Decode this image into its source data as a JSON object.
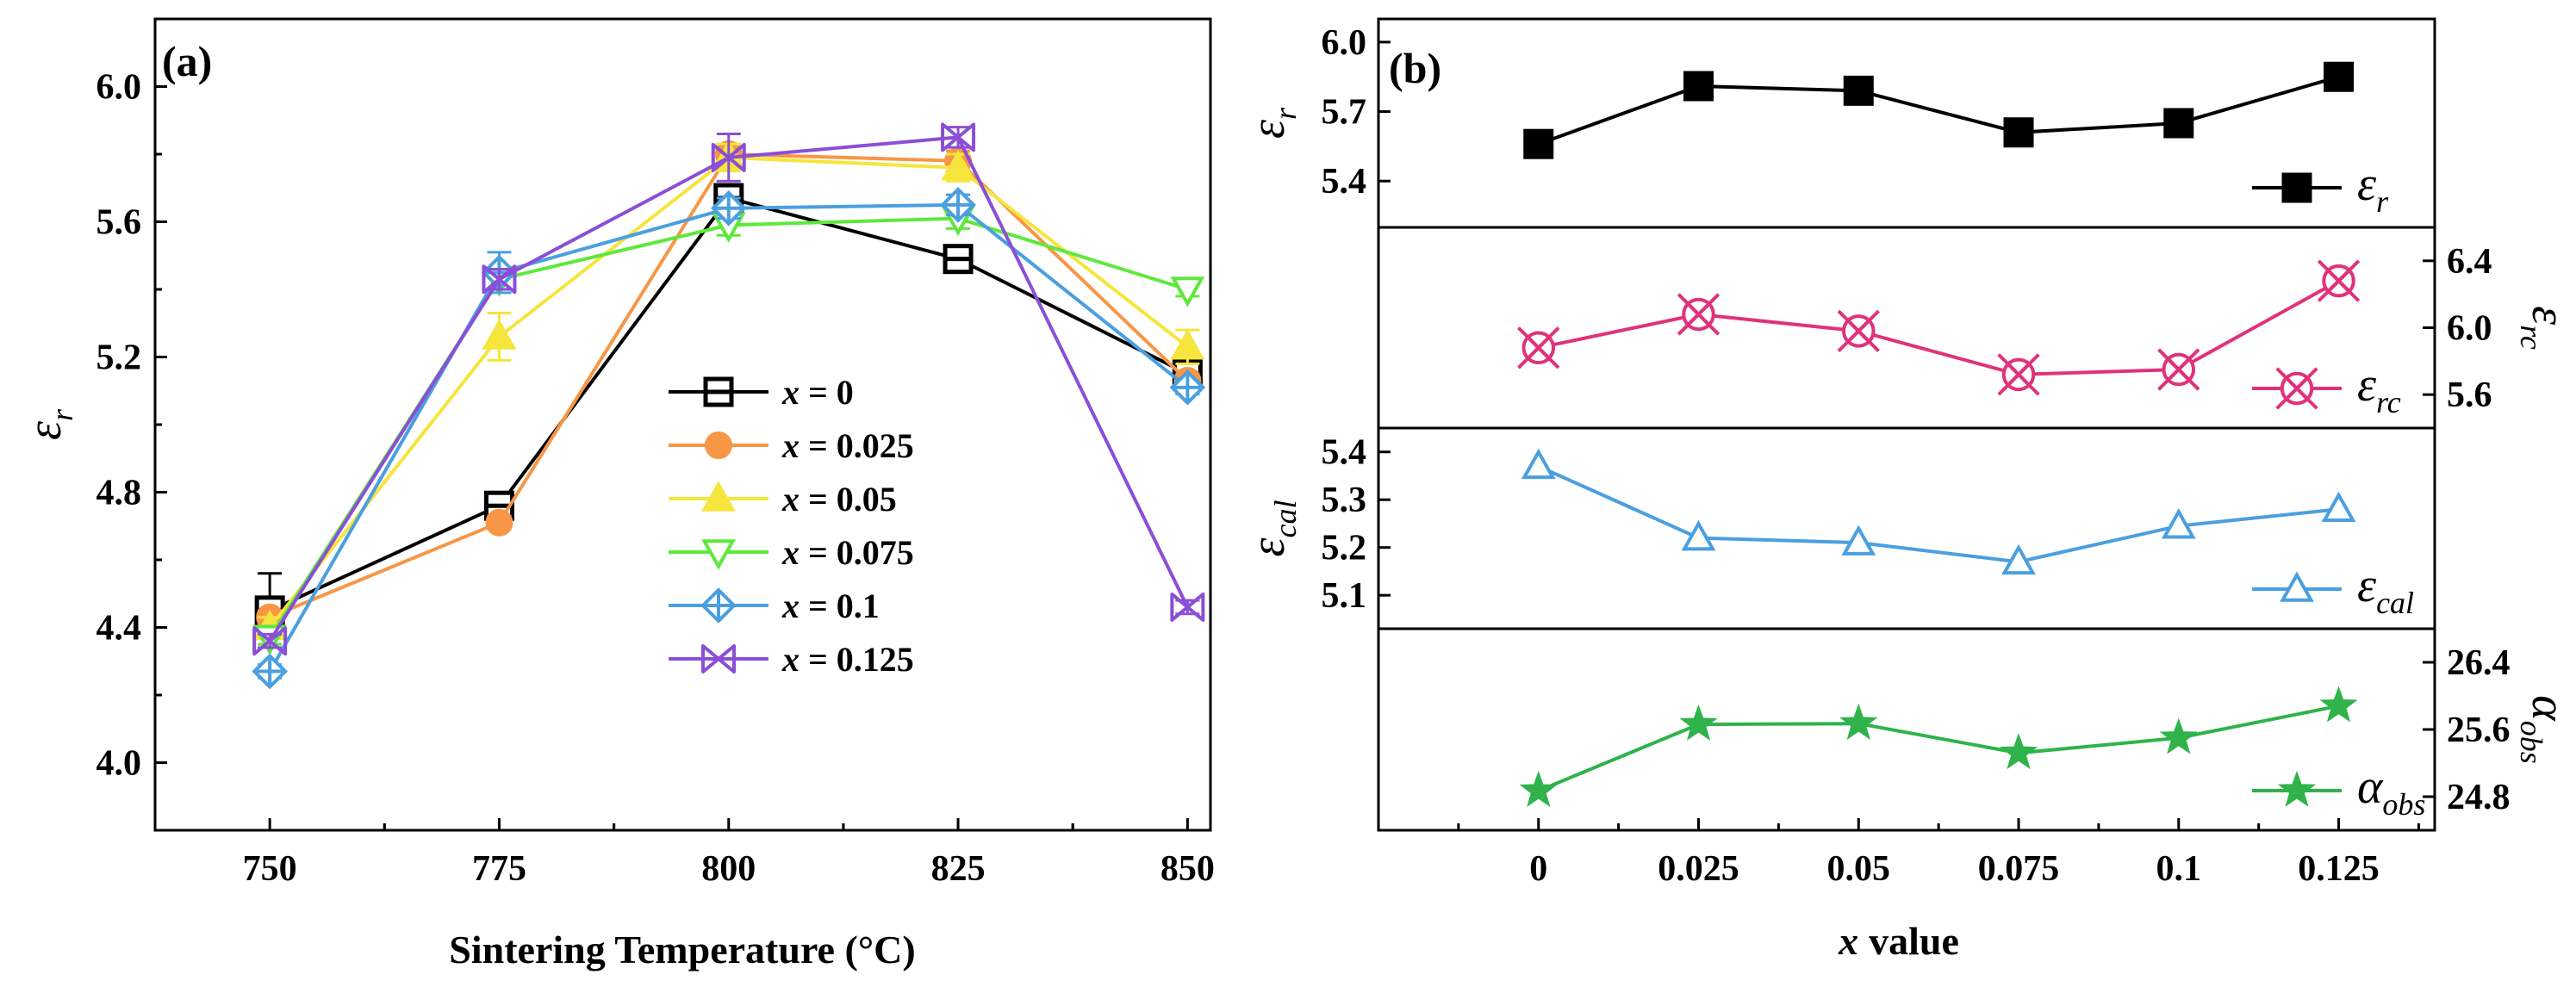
{
  "chart_data": [
    {
      "type": "line",
      "panel_label": "(a)",
      "xlabel": "Sintering Temperature (°C)",
      "ylabel": {
        "symbol": "ε",
        "sub": "r"
      },
      "x": [
        750,
        775,
        800,
        825,
        850
      ],
      "xlim": [
        737.5,
        852.5
      ],
      "ylim": [
        3.8,
        6.2
      ],
      "xticks": [
        "750",
        "775",
        "800",
        "825",
        "850"
      ],
      "yticks": [
        "4.0",
        "4.4",
        "4.8",
        "5.2",
        "5.6",
        "6.0"
      ],
      "series": [
        {
          "name": "x = 0",
          "prefix": "x",
          "value": "= 0",
          "color": "#000000",
          "marker": "square-open",
          "values": [
            4.45,
            4.76,
            5.67,
            5.49,
            5.15
          ],
          "errors": [
            0.11,
            0.02,
            0.04,
            0.02,
            0.02
          ]
        },
        {
          "name": "x = 0.025",
          "prefix": "x",
          "value": "= 0.025",
          "color": "#f79646",
          "marker": "circle-filled",
          "values": [
            4.43,
            4.71,
            5.8,
            5.78,
            5.13
          ],
          "errors": [
            0.02,
            0.02,
            0.03,
            0.03,
            0.02
          ]
        },
        {
          "name": "x = 0.05",
          "prefix": "x",
          "value": "= 0.05",
          "color": "#f5e53c",
          "marker": "triangle-filled",
          "values": [
            4.4,
            5.26,
            5.79,
            5.76,
            5.23
          ],
          "errors": [
            0.03,
            0.07,
            0.04,
            0.04,
            0.05
          ]
        },
        {
          "name": "x = 0.075",
          "prefix": "x",
          "value": "= 0.075",
          "color": "#5ee83c",
          "marker": "triangle-down-open",
          "values": [
            4.37,
            5.43,
            5.59,
            5.61,
            5.4
          ],
          "errors": [
            0.02,
            0.03,
            0.03,
            0.03,
            0.02
          ]
        },
        {
          "name": "x = 0.1",
          "prefix": "x",
          "value": "= 0.1",
          "color": "#4a9fe0",
          "marker": "diamond-cross",
          "values": [
            4.27,
            5.45,
            5.64,
            5.65,
            5.11
          ],
          "errors": [
            0.02,
            0.06,
            0.03,
            0.03,
            0.02
          ]
        },
        {
          "name": "x = 0.125",
          "prefix": "x",
          "value": "= 0.125",
          "color": "#8a4fd6",
          "marker": "x-bowtie",
          "values": [
            4.36,
            5.43,
            5.79,
            5.85,
            4.46
          ],
          "errors": [
            0.02,
            0.03,
            0.07,
            0.03,
            0.02
          ]
        }
      ]
    },
    {
      "type": "line",
      "panel_label": "(b)",
      "xlabel": {
        "prefix": "x",
        "rest": "value"
      },
      "categories": [
        "0",
        "0.025",
        "0.05",
        "0.075",
        "0.1",
        "0.125"
      ],
      "x": [
        0,
        0.025,
        0.05,
        0.075,
        0.1,
        0.125
      ],
      "xlim": [
        -0.025,
        0.14
      ],
      "subplots": [
        {
          "name": "εr",
          "symbol": "ε",
          "sub": "r",
          "axis_side": "left",
          "color": "#000000",
          "marker": "square-filled",
          "ylim": [
            5.2,
            6.1
          ],
          "yticks": [
            "5.4",
            "5.7",
            "6.0"
          ],
          "values": [
            5.56,
            5.81,
            5.79,
            5.61,
            5.65,
            5.85
          ],
          "errors": [
            0.01,
            0.01,
            0.01,
            0.02,
            0.01,
            0.02
          ]
        },
        {
          "name": "εrc",
          "symbol": "ε",
          "sub": "rc",
          "axis_side": "right",
          "color": "#e0327a",
          "marker": "x-circle",
          "ylim": [
            5.4,
            6.6
          ],
          "yticks": [
            "5.6",
            "6.0",
            "6.4"
          ],
          "values": [
            5.88,
            6.08,
            5.98,
            5.72,
            5.75,
            6.28
          ],
          "errors": []
        },
        {
          "name": "εcal",
          "symbol": "ε",
          "sub": "cal",
          "axis_side": "left",
          "color": "#4a9fe0",
          "marker": "triangle-open",
          "ylim": [
            5.03,
            5.45
          ],
          "yticks": [
            "5.1",
            "5.2",
            "5.3",
            "5.4"
          ],
          "values": [
            5.37,
            5.22,
            5.21,
            5.17,
            5.245,
            5.28
          ],
          "errors": []
        },
        {
          "name": "αobs",
          "symbol": "α",
          "sub": "obs",
          "axis_side": "right",
          "color": "#2fb34a",
          "marker": "star-filled",
          "ylim": [
            24.4,
            26.8
          ],
          "yticks": [
            "24.8",
            "25.6",
            "26.4"
          ],
          "values": [
            24.87,
            25.66,
            25.67,
            25.32,
            25.5,
            25.88
          ],
          "errors": []
        }
      ]
    }
  ]
}
